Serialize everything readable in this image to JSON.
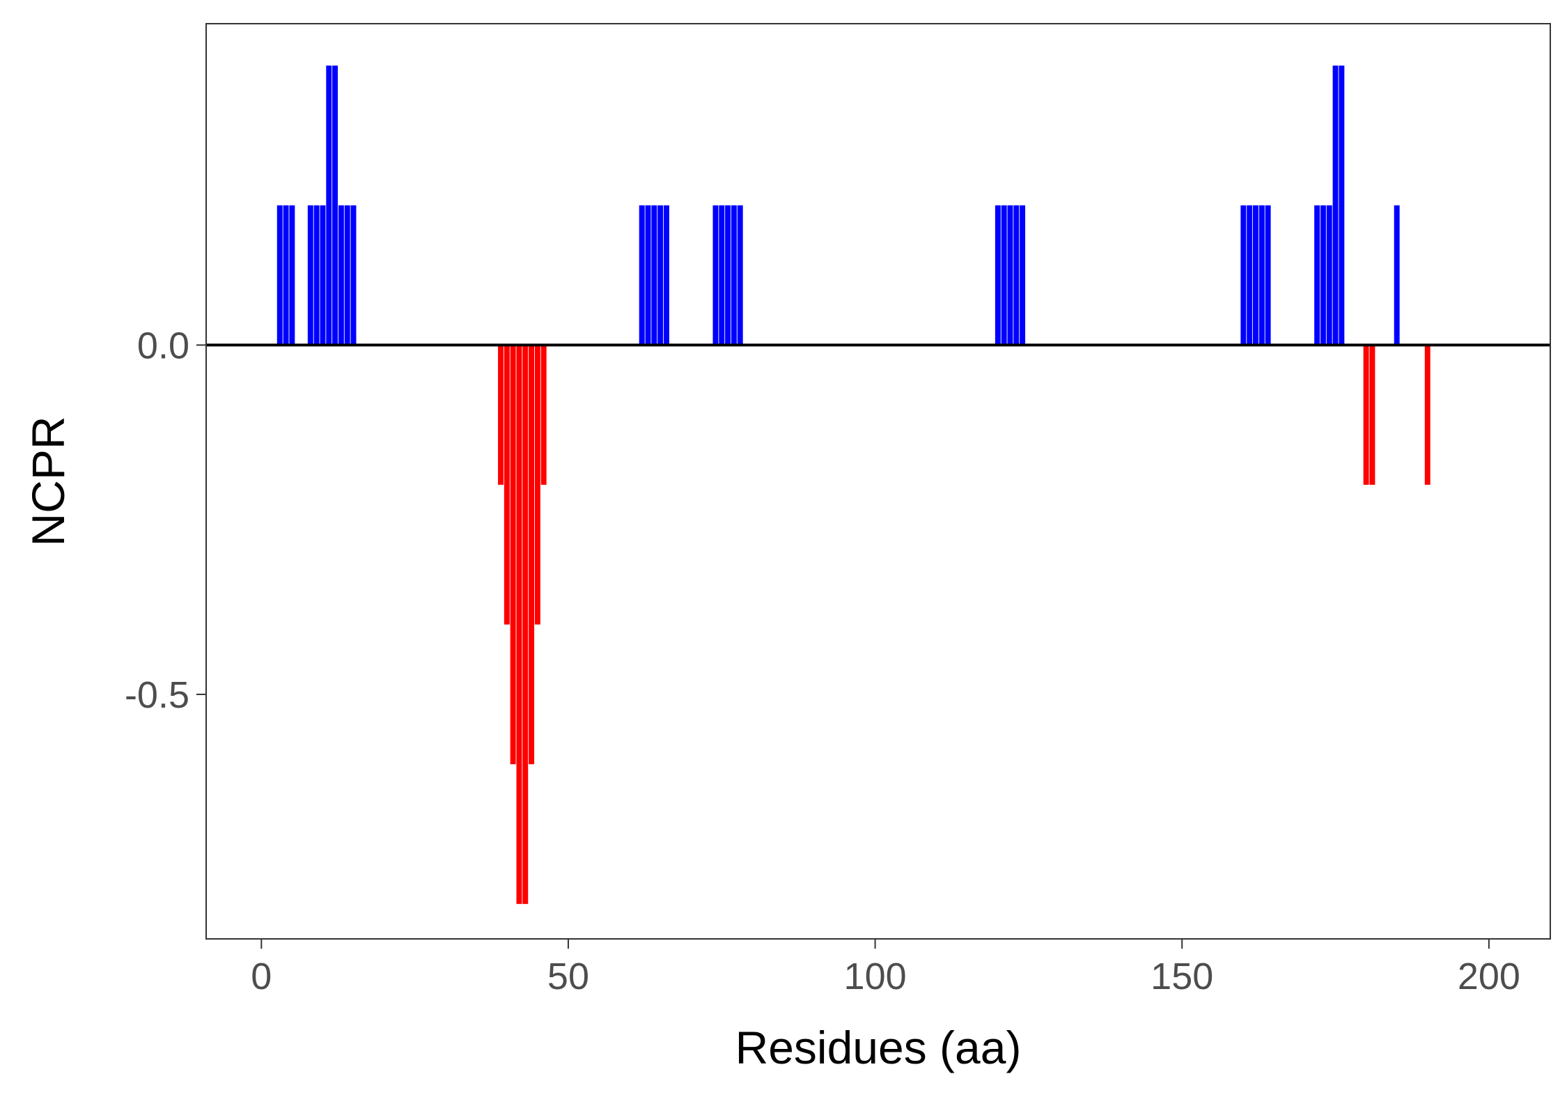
{
  "chart_data": {
    "type": "bar",
    "xlabel": "Residues (aa)",
    "ylabel": "NCPR",
    "xlim": [
      -9,
      210
    ],
    "ylim": [
      -0.85,
      0.46
    ],
    "x_ticks": [
      0,
      50,
      100,
      150,
      200
    ],
    "y_ticks": [
      0.0,
      -0.5
    ],
    "y_tick_labels": [
      "0.0",
      "-0.5"
    ],
    "grid": false,
    "legend": "none",
    "colors": {
      "positive": "#0000ff",
      "negative": "#ff0000",
      "zero_line": "#000000"
    },
    "bars": [
      {
        "x": 3,
        "y": 0.2
      },
      {
        "x": 4,
        "y": 0.2
      },
      {
        "x": 5,
        "y": 0.2
      },
      {
        "x": 8,
        "y": 0.2
      },
      {
        "x": 9,
        "y": 0.2
      },
      {
        "x": 10,
        "y": 0.2
      },
      {
        "x": 11,
        "y": 0.4
      },
      {
        "x": 12,
        "y": 0.4
      },
      {
        "x": 13,
        "y": 0.2
      },
      {
        "x": 14,
        "y": 0.2
      },
      {
        "x": 15,
        "y": 0.2
      },
      {
        "x": 39,
        "y": -0.2
      },
      {
        "x": 40,
        "y": -0.4
      },
      {
        "x": 41,
        "y": -0.6
      },
      {
        "x": 42,
        "y": -0.8
      },
      {
        "x": 43,
        "y": -0.8
      },
      {
        "x": 44,
        "y": -0.6
      },
      {
        "x": 45,
        "y": -0.4
      },
      {
        "x": 46,
        "y": -0.2
      },
      {
        "x": 62,
        "y": 0.2
      },
      {
        "x": 63,
        "y": 0.2
      },
      {
        "x": 64,
        "y": 0.2
      },
      {
        "x": 65,
        "y": 0.2
      },
      {
        "x": 66,
        "y": 0.2
      },
      {
        "x": 74,
        "y": 0.2
      },
      {
        "x": 75,
        "y": 0.2
      },
      {
        "x": 76,
        "y": 0.2
      },
      {
        "x": 77,
        "y": 0.2
      },
      {
        "x": 78,
        "y": 0.2
      },
      {
        "x": 120,
        "y": 0.2
      },
      {
        "x": 121,
        "y": 0.2
      },
      {
        "x": 122,
        "y": 0.2
      },
      {
        "x": 123,
        "y": 0.2
      },
      {
        "x": 124,
        "y": 0.2
      },
      {
        "x": 160,
        "y": 0.2
      },
      {
        "x": 161,
        "y": 0.2
      },
      {
        "x": 162,
        "y": 0.2
      },
      {
        "x": 163,
        "y": 0.2
      },
      {
        "x": 164,
        "y": 0.2
      },
      {
        "x": 172,
        "y": 0.2
      },
      {
        "x": 173,
        "y": 0.2
      },
      {
        "x": 174,
        "y": 0.2
      },
      {
        "x": 175,
        "y": 0.4
      },
      {
        "x": 176,
        "y": 0.4
      },
      {
        "x": 180,
        "y": -0.2
      },
      {
        "x": 181,
        "y": -0.2
      },
      {
        "x": 185,
        "y": 0.2
      },
      {
        "x": 190,
        "y": -0.2
      }
    ]
  }
}
